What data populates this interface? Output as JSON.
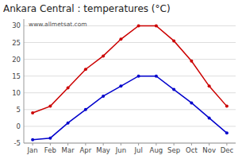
{
  "chart_data": {
    "type": "line",
    "title": "Ankara Central : temperatures (°C)",
    "categories": [
      "Jan",
      "Feb",
      "Mar",
      "Apr",
      "May",
      "Jun",
      "Jul",
      "Aug",
      "Sep",
      "Oct",
      "Nov",
      "Dec"
    ],
    "series": [
      {
        "color": "#cc0000",
        "marker": "circle",
        "values": [
          4,
          6,
          11.5,
          17,
          21,
          26,
          30,
          30,
          25.5,
          19.5,
          12,
          6
        ]
      },
      {
        "color": "#0000cc",
        "marker": "circle",
        "values": [
          -4,
          -3.5,
          1,
          5,
          9,
          12,
          15,
          15,
          11,
          7,
          2.5,
          -2
        ]
      }
    ],
    "ylim": [
      -5,
      32
    ],
    "yticks": [
      -5,
      0,
      5,
      10,
      15,
      20,
      25,
      30
    ],
    "grid": true,
    "annotations": [
      "www.allmetsat.com"
    ]
  }
}
